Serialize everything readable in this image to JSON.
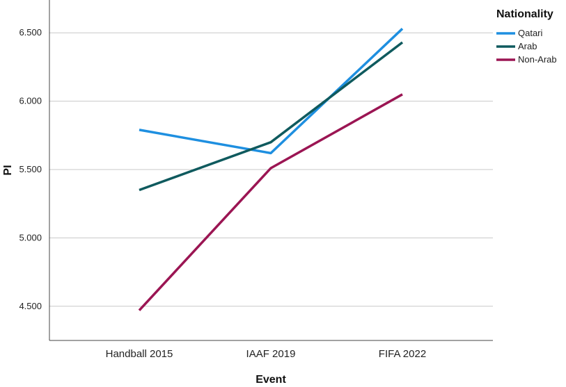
{
  "chart_data": {
    "type": "line",
    "title": "",
    "xlabel": "Event",
    "ylabel": "PI",
    "categories": [
      "Handball 2015",
      "IAAF 2019",
      "FIFA 2022"
    ],
    "yticks": [
      4.5,
      5.0,
      5.5,
      6.0,
      6.5
    ],
    "ytick_labels": [
      "4.500",
      "5.000",
      "5.500",
      "6.000",
      "6.500"
    ],
    "ylim": [
      4.25,
      6.74
    ],
    "grid": "horizontal",
    "legend": {
      "title": "Nationality",
      "position": "right"
    },
    "series": [
      {
        "name": "Qatari",
        "color": "#1e8fe0",
        "values": [
          5.79,
          5.62,
          6.53
        ]
      },
      {
        "name": "Arab",
        "color": "#0f5a5e",
        "values": [
          5.35,
          5.7,
          6.43
        ]
      },
      {
        "name": "Non-Arab",
        "color": "#9b1553",
        "values": [
          4.47,
          5.51,
          6.05
        ]
      }
    ]
  }
}
